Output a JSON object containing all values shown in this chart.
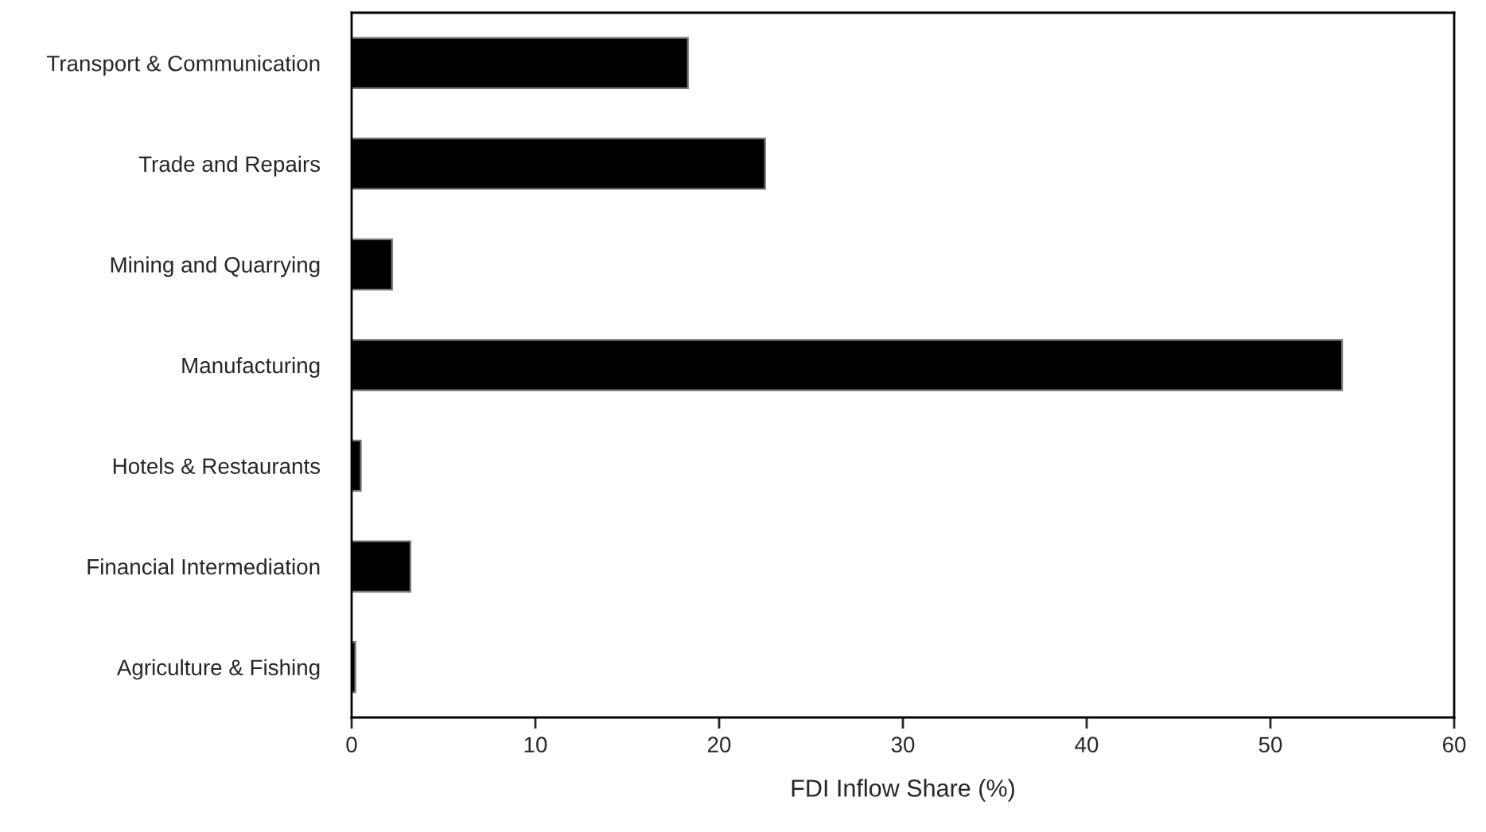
{
  "chart_data": {
    "type": "bar",
    "orientation": "horizontal",
    "xlabel": "FDI Inflow Share (%)",
    "categories": [
      "Transport & Communication",
      "Trade and Repairs",
      "Mining and Quarrying",
      "Manufacturing",
      "Hotels & Restaurants",
      "Financial Intermediation",
      "Agriculture & Fishing"
    ],
    "values": [
      18.3,
      22.5,
      2.2,
      53.9,
      0.5,
      3.2,
      0.2
    ],
    "color": "#000000",
    "xlim": [
      0,
      60
    ],
    "xticks": [
      0,
      10,
      20,
      30,
      40,
      50,
      60
    ],
    "grid": false,
    "legend": false
  }
}
